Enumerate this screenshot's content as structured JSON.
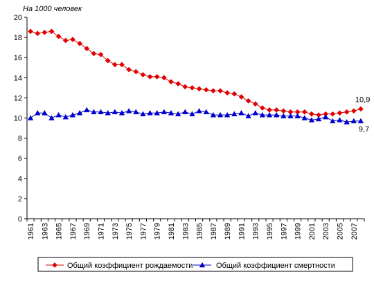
{
  "chart_data": {
    "type": "line",
    "title": "",
    "unit_caption": "На 1000 человек",
    "xlabel": "",
    "ylabel": "",
    "ylim": [
      0,
      20
    ],
    "yticks": [
      0,
      2,
      4,
      6,
      8,
      10,
      12,
      14,
      16,
      18,
      20
    ],
    "grid": false,
    "legend_position": "bottom",
    "x": [
      1961,
      1962,
      1963,
      1964,
      1965,
      1966,
      1967,
      1968,
      1969,
      1970,
      1971,
      1972,
      1973,
      1974,
      1975,
      1976,
      1977,
      1978,
      1979,
      1980,
      1981,
      1982,
      1983,
      1984,
      1985,
      1986,
      1987,
      1988,
      1989,
      1990,
      1991,
      1992,
      1993,
      1994,
      1995,
      1996,
      1997,
      1998,
      1999,
      2000,
      2001,
      2002,
      2003,
      2004,
      2005,
      2006,
      2007,
      2008
    ],
    "xtick_labels": [
      "1961",
      "1963",
      "1965",
      "1967",
      "1969",
      "1971",
      "1973",
      "1975",
      "1977",
      "1979",
      "1981",
      "1983",
      "1985",
      "1987",
      "1989",
      "1991",
      "1993",
      "1995",
      "1997",
      "1999",
      "2001",
      "2003",
      "2005",
      "2007"
    ],
    "series": [
      {
        "name": "Общий коэффициент рождаемости",
        "color": "#e00000",
        "marker": "diamond",
        "values": [
          18.6,
          18.4,
          18.5,
          18.6,
          18.1,
          17.7,
          17.8,
          17.4,
          16.9,
          16.4,
          16.3,
          15.7,
          15.3,
          15.3,
          14.8,
          14.6,
          14.3,
          14.1,
          14.1,
          14.0,
          13.6,
          13.4,
          13.1,
          13.0,
          12.9,
          12.8,
          12.7,
          12.7,
          12.5,
          12.4,
          12.1,
          11.7,
          11.4,
          11.0,
          10.8,
          10.8,
          10.7,
          10.6,
          10.6,
          10.6,
          10.4,
          10.3,
          10.4,
          10.4,
          10.5,
          10.6,
          10.7,
          10.9
        ],
        "end_label": "10,9"
      },
      {
        "name": "Общий коэффициент смертности",
        "color": "#0000cc",
        "marker": "triangle",
        "values": [
          10.0,
          10.5,
          10.5,
          10.0,
          10.3,
          10.1,
          10.3,
          10.5,
          10.8,
          10.6,
          10.6,
          10.5,
          10.6,
          10.5,
          10.7,
          10.6,
          10.4,
          10.5,
          10.5,
          10.6,
          10.5,
          10.4,
          10.6,
          10.4,
          10.7,
          10.6,
          10.3,
          10.3,
          10.3,
          10.4,
          10.5,
          10.2,
          10.5,
          10.3,
          10.3,
          10.3,
          10.2,
          10.2,
          10.2,
          10.0,
          9.8,
          9.9,
          10.1,
          9.7,
          9.8,
          9.6,
          9.7,
          9.7
        ],
        "end_label": "9,7"
      }
    ]
  }
}
